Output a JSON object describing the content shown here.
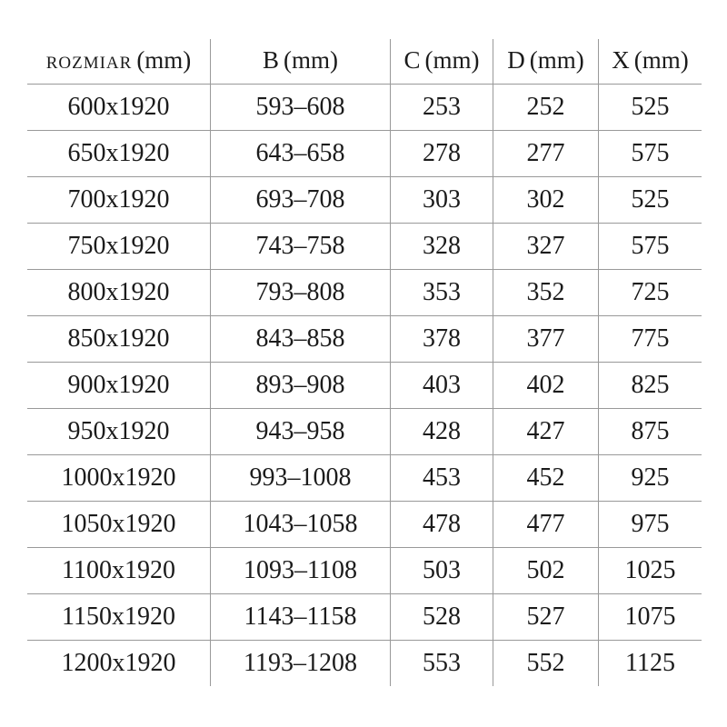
{
  "page": {
    "background": "#ffffff"
  },
  "table": {
    "line_color": "#999999",
    "text_color": "#1b1b1b",
    "columns": [
      {
        "name": "ROZMIAR",
        "unit": "(mm)"
      },
      {
        "name": "B",
        "unit": "(mm)"
      },
      {
        "name": "C",
        "unit": "(mm)"
      },
      {
        "name": "D",
        "unit": "(mm)"
      },
      {
        "name": "X",
        "unit": "(mm)"
      }
    ],
    "rows": [
      [
        "600x1920",
        "593–608",
        "253",
        "252",
        "525"
      ],
      [
        "650x1920",
        "643–658",
        "278",
        "277",
        "575"
      ],
      [
        "700x1920",
        "693–708",
        "303",
        "302",
        "525"
      ],
      [
        "750x1920",
        "743–758",
        "328",
        "327",
        "575"
      ],
      [
        "800x1920",
        "793–808",
        "353",
        "352",
        "725"
      ],
      [
        "850x1920",
        "843–858",
        "378",
        "377",
        "775"
      ],
      [
        "900x1920",
        "893–908",
        "403",
        "402",
        "825"
      ],
      [
        "950x1920",
        "943–958",
        "428",
        "427",
        "875"
      ],
      [
        "1000x1920",
        "993–1008",
        "453",
        "452",
        "925"
      ],
      [
        "1050x1920",
        "1043–1058",
        "478",
        "477",
        "975"
      ],
      [
        "1100x1920",
        "1093–1108",
        "503",
        "502",
        "1025"
      ],
      [
        "1150x1920",
        "1143–1158",
        "528",
        "527",
        "1075"
      ],
      [
        "1200x1920",
        "1193–1208",
        "553",
        "552",
        "1125"
      ]
    ]
  }
}
